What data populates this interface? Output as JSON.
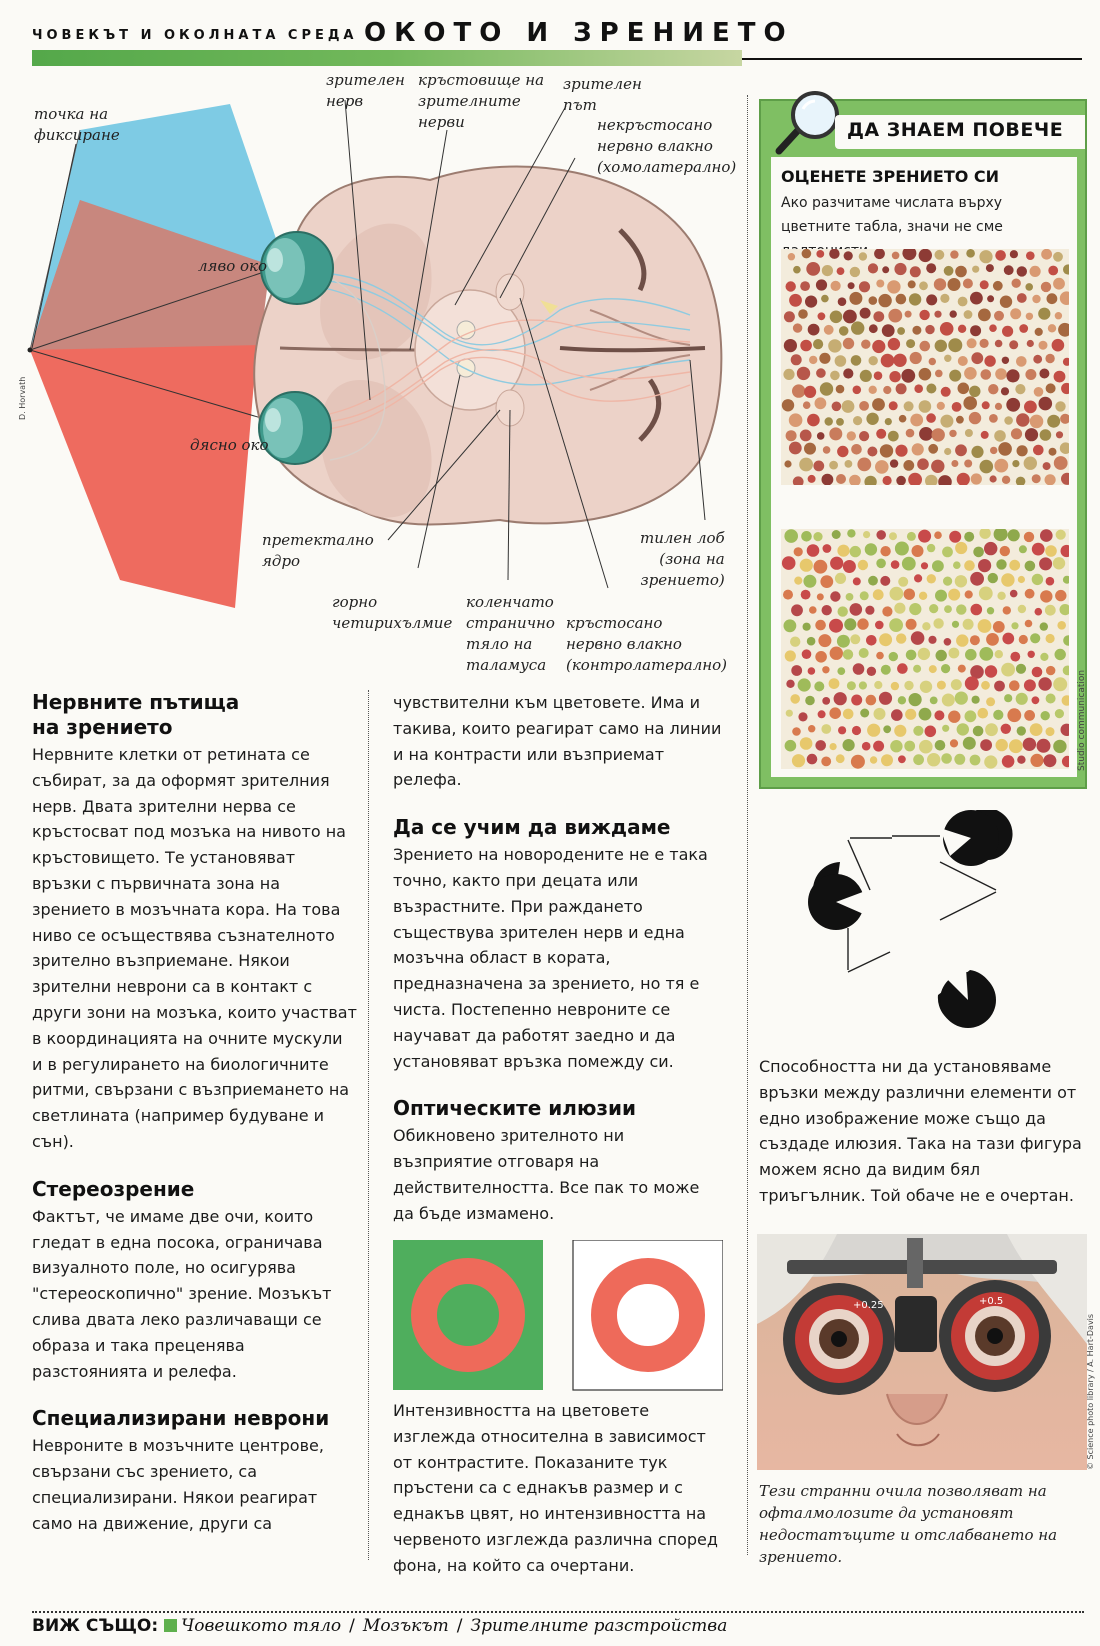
{
  "header": {
    "kicker": "ЧОВЕКЪТ И ОКОЛНАТА СРЕДА",
    "title": "ОКОТО И ЗРЕНИЕТО"
  },
  "diagram": {
    "labels": {
      "fixation": "точка на\nфиксиране",
      "optic_nerve": "зрителен\nнерв",
      "chiasm": "кръстовище на\nзрителните\nнерви",
      "optic_tract": "зрителен\nпът",
      "uncrossed": "некръстосано\nнервно влакно\n(хомолатерално)",
      "left_eye": "ляво око",
      "right_eye": "дясно око",
      "pretectal": "претектално\nядро",
      "colliculus": "горно\nчетирихълмие",
      "lgn": "коленчато\nстранично\nтяло на\nталамуса",
      "crossed": "кръстосано\nнервно влакно\n(контролатерално)",
      "occipital": "тилен лоб\n(зона на\nзрението)"
    },
    "credit": "D. Horvath",
    "colors": {
      "left_field": "#7ecbe4",
      "right_field": "#ee6b5f",
      "overlap": "#c8877e",
      "brain": "#ecd2c8",
      "eye": "#4ba79a"
    }
  },
  "col1": {
    "s1_title": "Нервните пътища\nна зрението",
    "s1_text": "Нервните клетки от ретината се събират, за да оформят зрителния нерв. Двата зрителни нерва се кръстосват под мозъка на нивото на кръстовището. Те установяват връзки с първичната зона на зрението в мозъчната кора. На това ниво се осъществява съзнателното зрително възприемане. Някои зрителни неврони са в контакт с други зони на мозъка, които участват в координацията на очните мускули и в регулирането на биологичните ритми, свързани с възприемането на светлината (например будуване и сън).",
    "s2_title": "Стереозрение",
    "s2_text": "Фактът, че имаме две очи, които гледат в една посока, ограничава визуалното поле, но осигурява \"стереоскопично\" зрение. Мозъкът слива двата леко различаващи се образа и така преценява разстоянията и релефа.",
    "s3_title": "Специализирани неврони",
    "s3_text": "Невроните в мозъчните центрове, свързани със зрението, са специализирани. Някои реагират само на движение, други са"
  },
  "col2": {
    "cont_text": "чувствителни към цветовете. Има и такива, които реагират само на линии и на контрасти или възприемат релефа.",
    "s4_title": "Да се учим да виждаме",
    "s4_text": "Зрението на новородените не е така точно, както при децата или възрастните. При раждането съществува зрителен нерв и една мозъчна област в кората, предназначена за зрението, но тя е чиста. Постепенно невроните се научават да работят заедно и да установяват връзка помежду си.",
    "s5_title": "Оптическите илюзии",
    "s5_text": "Обикновено зрителното ни възприятие отговаря на действителността. Все пак то може да бъде измамено.",
    "rings_caption": "Интензивността на цветовете изглежда относителна в зависимост от контрастите. Показаните тук пръстени са с еднакъв размер и с еднакъв цвят, но интензивността на червеното изглежда различна според фона, на който са очертани.",
    "ring_colors": {
      "green_bg": "#4fae5d",
      "ring": "#ee6a5a",
      "white_bg": "#ffffff"
    }
  },
  "sidebar": {
    "box_title": "ДА ЗНАЕМ ПОВЕЧЕ",
    "box_subtitle": "ОЦЕНЕТЕ ЗРЕНИЕТО СИ",
    "box_text": "Ако разчитаме числата върху цветните табла, значи не сме далтонисти.",
    "plate_credit": "Studio communication",
    "illusion_text": "Способността ни да установяваме връзки между различни елементи от едно изображение може също да създаде илюзия. Така на тази фигура можем ясно да видим бял триъгълник. Той обаче не е очертан.",
    "photo_credit": "© Science photo library / A. Hart-Davis",
    "photo_caption": "Тези странни очила позволяват на офталмолозите да установят недостатъците и отслабването на зрението.",
    "photo_lens_label": "+0.25",
    "photo_lens_label2": "+0.5"
  },
  "footer": {
    "see_also": "ВИЖ СЪЩО:",
    "links": [
      "Човешкото тяло",
      "Мозъкът",
      "Зрителните разстройства"
    ]
  }
}
